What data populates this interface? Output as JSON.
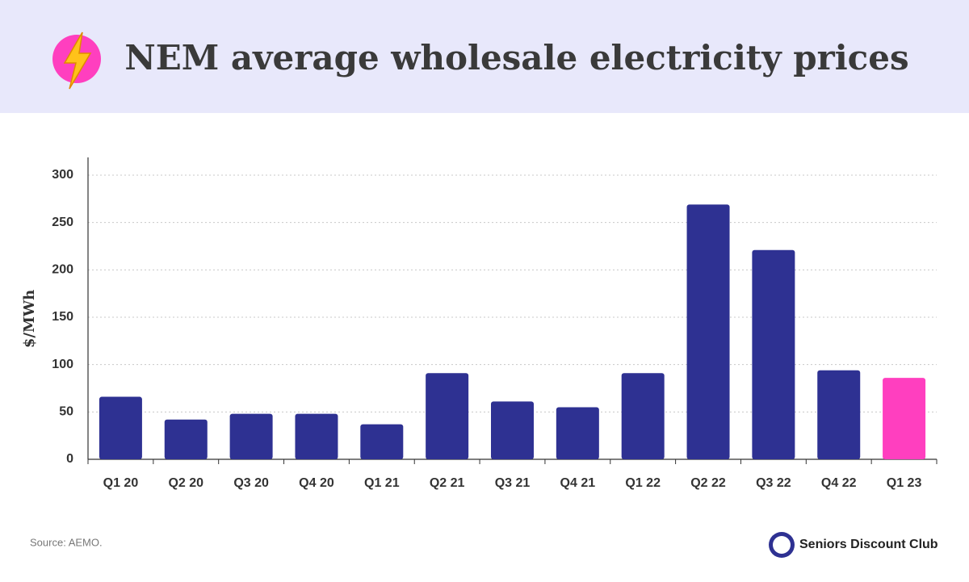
{
  "chart_data": {
    "type": "bar",
    "title": "NEM average wholesale electricity prices",
    "y_label": "$/MWh",
    "categories": [
      "Q1 20",
      "Q2 20",
      "Q3 20",
      "Q4 20",
      "Q1 21",
      "Q2 21",
      "Q3 21",
      "Q4 21",
      "Q1 22",
      "Q2 22",
      "Q3 22",
      "Q4 22",
      "Q1 23"
    ],
    "values": [
      66,
      42,
      48,
      48,
      37,
      91,
      61,
      55,
      91,
      269,
      221,
      94,
      86
    ],
    "colors": [
      "#2e3192",
      "#2e3192",
      "#2e3192",
      "#2e3192",
      "#2e3192",
      "#2e3192",
      "#2e3192",
      "#2e3192",
      "#2e3192",
      "#2e3192",
      "#2e3192",
      "#2e3192",
      "#ff3fbf"
    ],
    "ylim": [
      0,
      300
    ],
    "yticks": [
      0,
      50,
      100,
      150,
      200,
      250,
      300
    ],
    "grid": true,
    "source_note": "Source: AEMO.",
    "brand": "Seniors Discount Club"
  }
}
